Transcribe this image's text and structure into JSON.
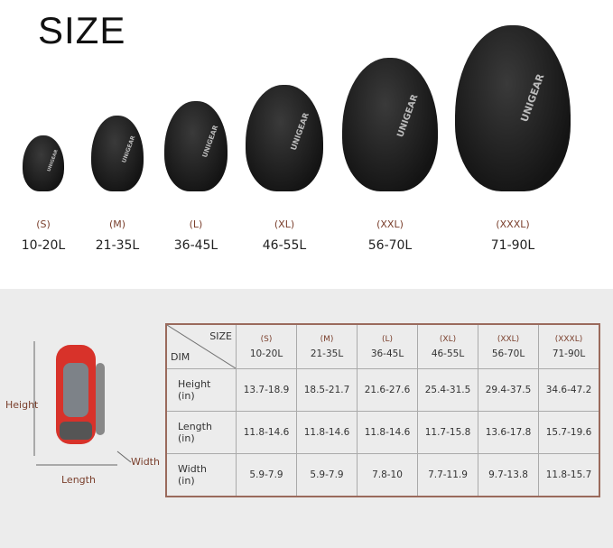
{
  "title": "SIZE",
  "brand_logo": "UNIGEAR",
  "sizes": [
    {
      "size": "(S)",
      "volume": "10-20L"
    },
    {
      "size": "(M)",
      "volume": "21-35L"
    },
    {
      "size": "(L)",
      "volume": "36-45L"
    },
    {
      "size": "(XL)",
      "volume": "46-55L"
    },
    {
      "size": "(XXL)",
      "volume": "56-70L"
    },
    {
      "size": "(XXXL)",
      "volume": "71-90L"
    }
  ],
  "diagram": {
    "height_label": "Height",
    "length_label": "Length",
    "width_label": "Width"
  },
  "table": {
    "corner_top": "SIZE",
    "corner_bottom": "DIM",
    "rows": [
      {
        "label": "Height",
        "unit": "(in)",
        "values": [
          "13.7-18.9",
          "18.5-21.7",
          "21.6-27.6",
          "25.4-31.5",
          "29.4-37.5",
          "34.6-47.2"
        ]
      },
      {
        "label": "Length",
        "unit": "(in)",
        "values": [
          "11.8-14.6",
          "11.8-14.6",
          "11.8-14.6",
          "11.7-15.8",
          "13.6-17.8",
          "15.7-19.6"
        ]
      },
      {
        "label": "Width",
        "unit": "(in)",
        "values": [
          "5.9-7.9",
          "5.9-7.9",
          "7.8-10",
          "7.7-11.9",
          "9.7-13.8",
          "11.8-15.7"
        ]
      }
    ]
  },
  "colors": {
    "size_label": "#7a3f2c",
    "table_border": "#9a6a5c",
    "bag_red": "#d8322a"
  }
}
